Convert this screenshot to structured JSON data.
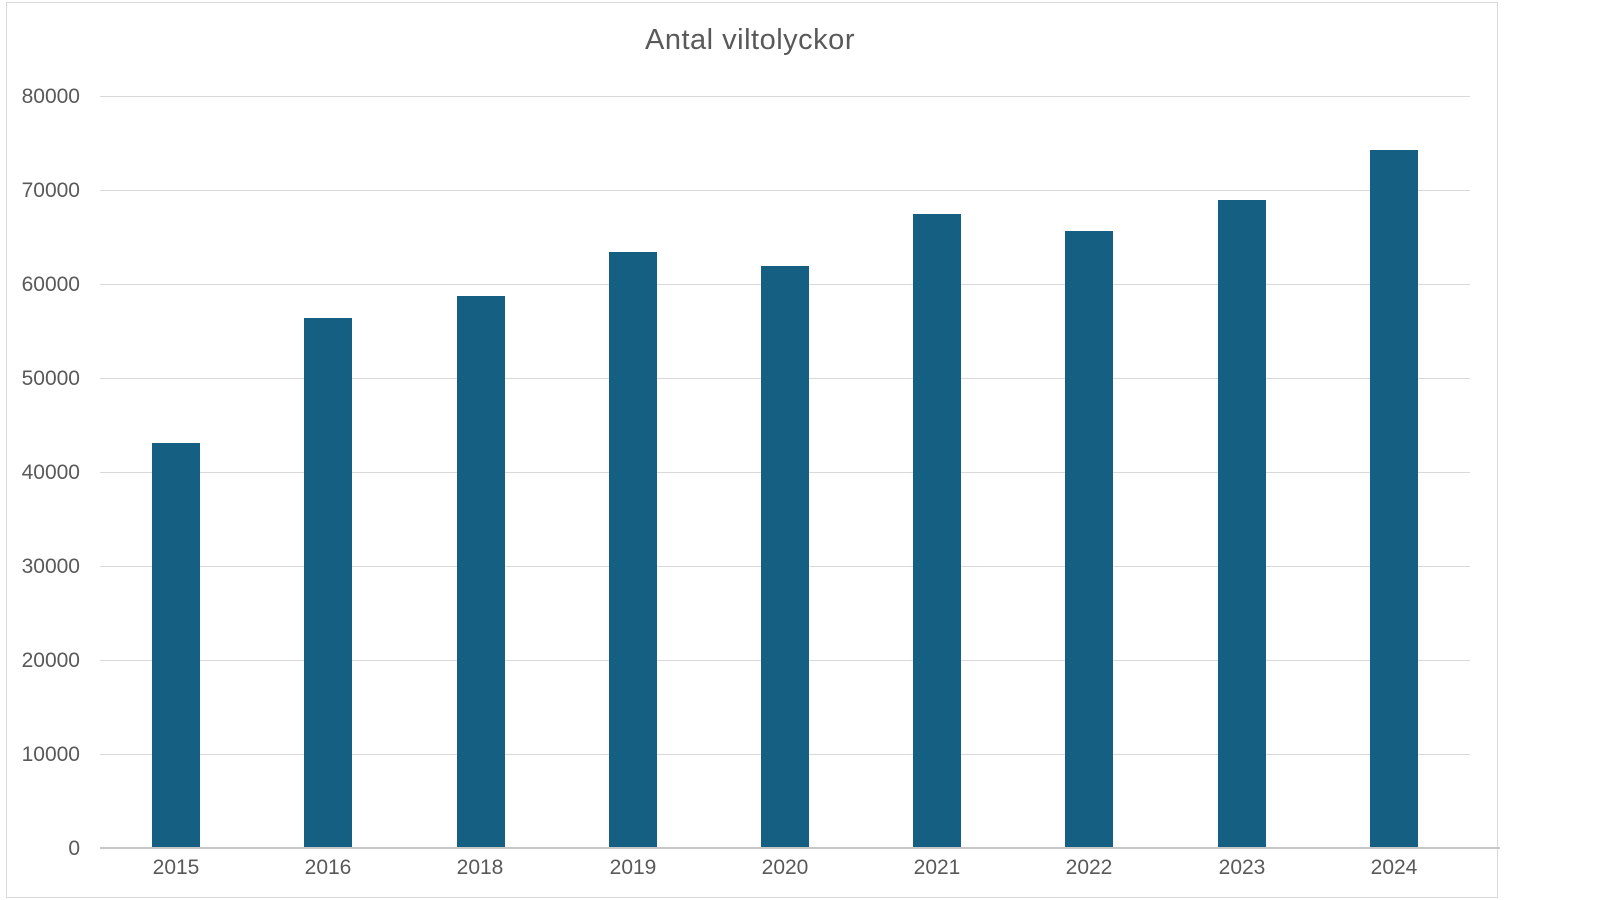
{
  "chart_data": {
    "type": "bar",
    "title": "Antal viltolyckor",
    "categories": [
      "2015",
      "2016",
      "2018",
      "2019",
      "2020",
      "2021",
      "2022",
      "2023",
      "2024"
    ],
    "values": [
      43100,
      56400,
      58700,
      63400,
      61900,
      67400,
      65600,
      68900,
      74300
    ],
    "xlabel": "",
    "ylabel": "",
    "ylim": [
      0,
      80000
    ],
    "yticks": [
      0,
      10000,
      20000,
      30000,
      40000,
      50000,
      60000,
      70000,
      80000
    ],
    "ytick_labels": [
      "0",
      "10000",
      "20000",
      "30000",
      "40000",
      "50000",
      "60000",
      "70000",
      "80000"
    ],
    "grid": true,
    "legend": false,
    "bar_color": "#156082",
    "text_color": "#595959",
    "grid_color": "#d9d9d9",
    "axis_color": "#c6c6c6"
  }
}
